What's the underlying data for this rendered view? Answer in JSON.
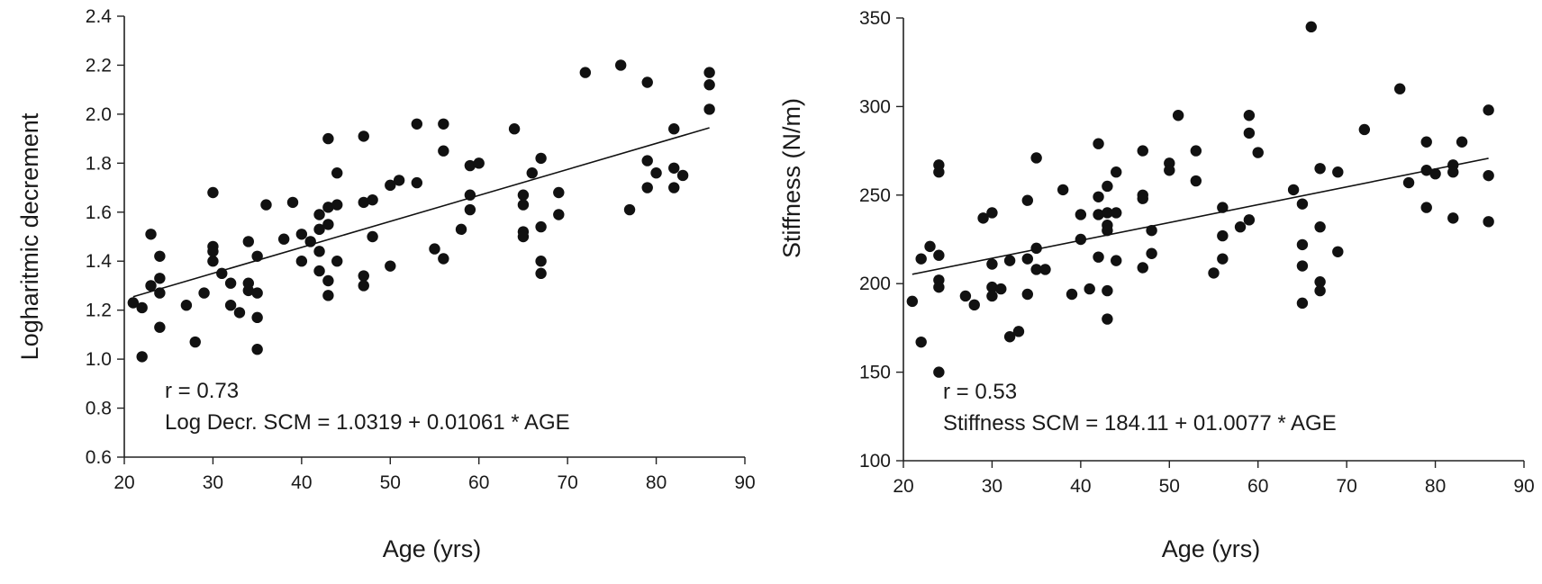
{
  "chart_data": [
    {
      "type": "scatter",
      "xlabel": "Age (yrs)",
      "ylabel": "Logharitmic decrement",
      "xlim": [
        20,
        90
      ],
      "ylim": [
        0.6,
        2.4
      ],
      "x_ticks": [
        "20",
        "30",
        "40",
        "50",
        "60",
        "70",
        "80",
        "90"
      ],
      "y_ticks": [
        "0.6",
        "0.8",
        "1.0",
        "1.2",
        "1.4",
        "1.6",
        "1.8",
        "2.0",
        "2.2",
        "2.4"
      ],
      "annotations": [
        "r = 0.73",
        "Log Decr. SCM = 1.0319 + 0.01061 * AGE"
      ],
      "fit_line": {
        "intercept": 1.0319,
        "slope": 0.01061,
        "x_range": [
          21,
          86
        ]
      },
      "points": [
        [
          21,
          1.23
        ],
        [
          22,
          1.21
        ],
        [
          22,
          1.01
        ],
        [
          23,
          1.51
        ],
        [
          23,
          1.3
        ],
        [
          24,
          1.42
        ],
        [
          24,
          1.33
        ],
        [
          24,
          1.27
        ],
        [
          24,
          1.13
        ],
        [
          27,
          1.22
        ],
        [
          28,
          1.07
        ],
        [
          29,
          1.27
        ],
        [
          30,
          1.68
        ],
        [
          30,
          1.46
        ],
        [
          30,
          1.44
        ],
        [
          30,
          1.4
        ],
        [
          31,
          1.35
        ],
        [
          32,
          1.31
        ],
        [
          32,
          1.22
        ],
        [
          33,
          1.19
        ],
        [
          34,
          1.48
        ],
        [
          34,
          1.31
        ],
        [
          34,
          1.28
        ],
        [
          35,
          1.42
        ],
        [
          35,
          1.27
        ],
        [
          35,
          1.17
        ],
        [
          35,
          1.04
        ],
        [
          36,
          1.63
        ],
        [
          38,
          1.49
        ],
        [
          39,
          1.64
        ],
        [
          40,
          1.51
        ],
        [
          40,
          1.4
        ],
        [
          41,
          1.48
        ],
        [
          42,
          1.59
        ],
        [
          42,
          1.53
        ],
        [
          42,
          1.44
        ],
        [
          42,
          1.36
        ],
        [
          43,
          1.9
        ],
        [
          43,
          1.62
        ],
        [
          43,
          1.55
        ],
        [
          43,
          1.32
        ],
        [
          43,
          1.26
        ],
        [
          44,
          1.76
        ],
        [
          44,
          1.63
        ],
        [
          44,
          1.4
        ],
        [
          47,
          1.91
        ],
        [
          47,
          1.64
        ],
        [
          47,
          1.34
        ],
        [
          47,
          1.3
        ],
        [
          48,
          1.65
        ],
        [
          48,
          1.5
        ],
        [
          50,
          1.71
        ],
        [
          50,
          1.38
        ],
        [
          51,
          1.73
        ],
        [
          53,
          1.96
        ],
        [
          53,
          1.72
        ],
        [
          55,
          1.45
        ],
        [
          56,
          1.96
        ],
        [
          56,
          1.85
        ],
        [
          56,
          1.41
        ],
        [
          58,
          1.53
        ],
        [
          59,
          1.79
        ],
        [
          59,
          1.67
        ],
        [
          59,
          1.61
        ],
        [
          60,
          1.8
        ],
        [
          64,
          1.94
        ],
        [
          65,
          1.67
        ],
        [
          65,
          1.63
        ],
        [
          65,
          1.52
        ],
        [
          65,
          1.5
        ],
        [
          66,
          1.76
        ],
        [
          67,
          1.82
        ],
        [
          67,
          1.54
        ],
        [
          67,
          1.4
        ],
        [
          67,
          1.35
        ],
        [
          69,
          1.68
        ],
        [
          69,
          1.59
        ],
        [
          72,
          2.17
        ],
        [
          76,
          2.2
        ],
        [
          77,
          1.61
        ],
        [
          79,
          2.13
        ],
        [
          79,
          1.81
        ],
        [
          79,
          1.7
        ],
        [
          80,
          1.76
        ],
        [
          82,
          1.94
        ],
        [
          82,
          1.78
        ],
        [
          82,
          1.7
        ],
        [
          83,
          1.75
        ],
        [
          86,
          2.17
        ],
        [
          86,
          2.12
        ],
        [
          86,
          2.02
        ]
      ]
    },
    {
      "type": "scatter",
      "xlabel": "Age (yrs)",
      "ylabel": "Stiffness (N/m)",
      "xlim": [
        20,
        90
      ],
      "ylim": [
        100,
        350
      ],
      "x_ticks": [
        "20",
        "30",
        "40",
        "50",
        "60",
        "70",
        "80",
        "90"
      ],
      "y_ticks": [
        "100",
        "150",
        "200",
        "250",
        "300",
        "350"
      ],
      "annotations": [
        "r = 0.53",
        "Stiffness SCM = 184.11 + 01.0077 * AGE"
      ],
      "fit_line": {
        "intercept": 184.11,
        "slope": 1.0077,
        "x_range": [
          21,
          86
        ]
      },
      "points": [
        [
          21,
          190
        ],
        [
          22,
          214
        ],
        [
          22,
          167
        ],
        [
          23,
          221
        ],
        [
          24,
          267
        ],
        [
          24,
          263
        ],
        [
          24,
          216
        ],
        [
          24,
          202
        ],
        [
          24,
          198
        ],
        [
          24,
          150
        ],
        [
          27,
          193
        ],
        [
          28,
          188
        ],
        [
          29,
          237
        ],
        [
          30,
          240
        ],
        [
          30,
          211
        ],
        [
          30,
          198
        ],
        [
          30,
          193
        ],
        [
          31,
          197
        ],
        [
          32,
          213
        ],
        [
          32,
          170
        ],
        [
          33,
          173
        ],
        [
          34,
          247
        ],
        [
          34,
          214
        ],
        [
          34,
          194
        ],
        [
          35,
          271
        ],
        [
          35,
          220
        ],
        [
          35,
          208
        ],
        [
          36,
          208
        ],
        [
          38,
          253
        ],
        [
          39,
          194
        ],
        [
          40,
          239
        ],
        [
          40,
          225
        ],
        [
          41,
          197
        ],
        [
          42,
          279
        ],
        [
          42,
          249
        ],
        [
          42,
          239
        ],
        [
          42,
          215
        ],
        [
          43,
          255
        ],
        [
          43,
          240
        ],
        [
          43,
          233
        ],
        [
          43,
          230
        ],
        [
          43,
          196
        ],
        [
          43,
          180
        ],
        [
          44,
          263
        ],
        [
          44,
          240
        ],
        [
          44,
          213
        ],
        [
          47,
          275
        ],
        [
          47,
          250
        ],
        [
          47,
          248
        ],
        [
          47,
          209
        ],
        [
          48,
          230
        ],
        [
          48,
          217
        ],
        [
          50,
          268
        ],
        [
          50,
          264
        ],
        [
          51,
          295
        ],
        [
          53,
          275
        ],
        [
          53,
          258
        ],
        [
          55,
          206
        ],
        [
          56,
          243
        ],
        [
          56,
          227
        ],
        [
          56,
          214
        ],
        [
          58,
          232
        ],
        [
          59,
          295
        ],
        [
          59,
          285
        ],
        [
          59,
          236
        ],
        [
          60,
          274
        ],
        [
          64,
          253
        ],
        [
          65,
          245
        ],
        [
          65,
          222
        ],
        [
          65,
          210
        ],
        [
          65,
          189
        ],
        [
          66,
          345
        ],
        [
          67,
          265
        ],
        [
          67,
          232
        ],
        [
          67,
          201
        ],
        [
          67,
          196
        ],
        [
          69,
          263
        ],
        [
          69,
          218
        ],
        [
          72,
          287
        ],
        [
          76,
          310
        ],
        [
          77,
          257
        ],
        [
          79,
          280
        ],
        [
          79,
          264
        ],
        [
          79,
          243
        ],
        [
          80,
          262
        ],
        [
          82,
          267
        ],
        [
          82,
          263
        ],
        [
          82,
          237
        ],
        [
          83,
          280
        ],
        [
          86,
          298
        ],
        [
          86,
          261
        ],
        [
          86,
          235
        ]
      ]
    }
  ]
}
